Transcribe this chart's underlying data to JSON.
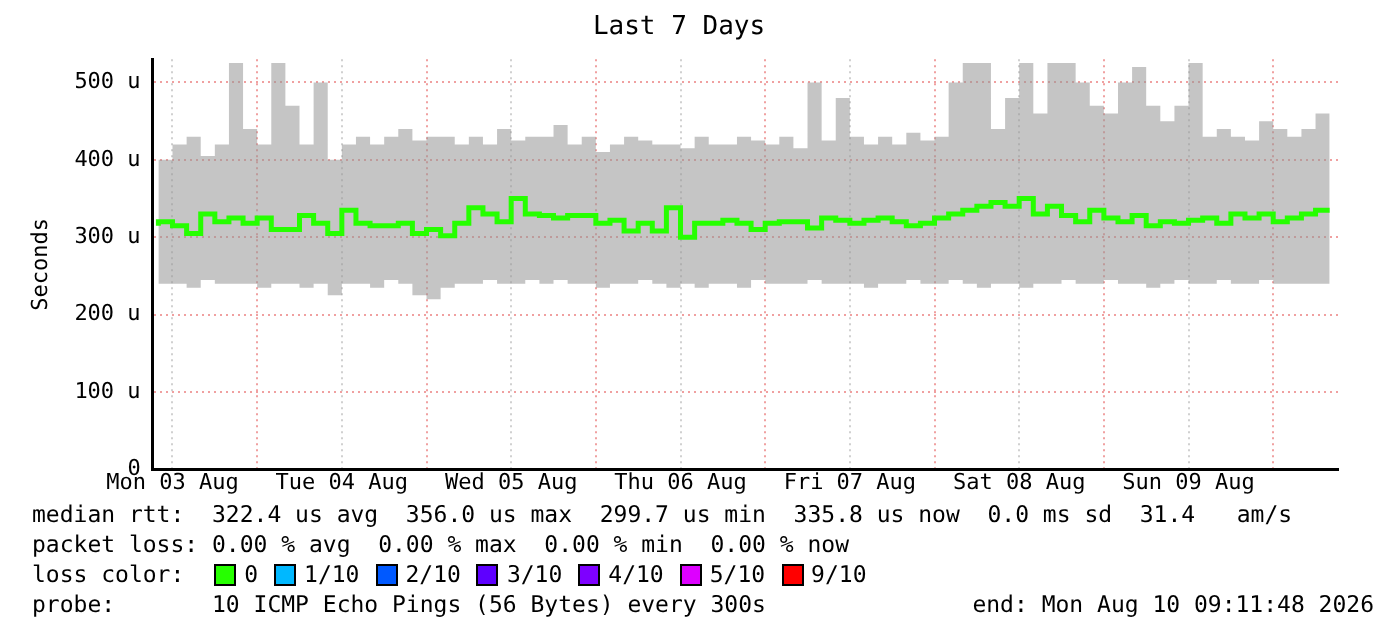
{
  "chart_data": {
    "type": "step",
    "title": "Last 7 Days",
    "ylabel": "Seconds",
    "legend_title": "loss color:",
    "legend": "bottom",
    "xlim": [
      "2026-08-03T09:11",
      "2026-08-10T09:11"
    ],
    "xticks": [
      {
        "value": "2026-08-03T12:00",
        "label": "Mon 03 Aug"
      },
      {
        "value": "2026-08-04T00:00",
        "label": null
      },
      {
        "value": "2026-08-04T12:00",
        "label": "Tue 04 Aug"
      },
      {
        "value": "2026-08-05T00:00",
        "label": null
      },
      {
        "value": "2026-08-05T12:00",
        "label": "Wed 05 Aug"
      },
      {
        "value": "2026-08-06T00:00",
        "label": null
      },
      {
        "value": "2026-08-06T12:00",
        "label": "Thu 06 Aug"
      },
      {
        "value": "2026-08-07T00:00",
        "label": null
      },
      {
        "value": "2026-08-07T12:00",
        "label": "Fri 07 Aug"
      },
      {
        "value": "2026-08-08T00:00",
        "label": null
      },
      {
        "value": "2026-08-08T12:00",
        "label": "Sat 08 Aug"
      },
      {
        "value": "2026-08-09T00:00",
        "label": null
      },
      {
        "value": "2026-08-09T12:00",
        "label": "Sun 09 Aug"
      },
      {
        "value": "2026-08-10T00:00",
        "label": null
      }
    ],
    "ylim": [
      0,
      530
    ],
    "yticks": [
      0,
      {
        "value": 100,
        "label": "100 u"
      },
      {
        "value": 200,
        "label": "200 u"
      },
      {
        "value": 300,
        "label": "300 u"
      },
      {
        "value": 400,
        "label": "400 u"
      },
      {
        "value": 500,
        "label": "500 u"
      }
    ],
    "grid": true,
    "x": [
      "2026-08-03T10:00",
      "2026-08-03T12:00",
      "2026-08-03T14:00",
      "2026-08-03T16:00",
      "2026-08-03T18:00",
      "2026-08-03T20:00",
      "2026-08-03T22:00",
      "2026-08-04T00:00",
      "2026-08-04T02:00",
      "2026-08-04T04:00",
      "2026-08-04T06:00",
      "2026-08-04T08:00",
      "2026-08-04T10:00",
      "2026-08-04T12:00",
      "2026-08-04T14:00",
      "2026-08-04T16:00",
      "2026-08-04T18:00",
      "2026-08-04T20:00",
      "2026-08-04T22:00",
      "2026-08-05T00:00",
      "2026-08-05T02:00",
      "2026-08-05T04:00",
      "2026-08-05T06:00",
      "2026-08-05T08:00",
      "2026-08-05T10:00",
      "2026-08-05T12:00",
      "2026-08-05T14:00",
      "2026-08-05T16:00",
      "2026-08-05T18:00",
      "2026-08-05T20:00",
      "2026-08-05T22:00",
      "2026-08-06T00:00",
      "2026-08-06T02:00",
      "2026-08-06T04:00",
      "2026-08-06T06:00",
      "2026-08-06T08:00",
      "2026-08-06T10:00",
      "2026-08-06T12:00",
      "2026-08-06T14:00",
      "2026-08-06T16:00",
      "2026-08-06T18:00",
      "2026-08-06T20:00",
      "2026-08-06T22:00",
      "2026-08-07T00:00",
      "2026-08-07T02:00",
      "2026-08-07T04:00",
      "2026-08-07T06:00",
      "2026-08-07T08:00",
      "2026-08-07T10:00",
      "2026-08-07T12:00",
      "2026-08-07T14:00",
      "2026-08-07T16:00",
      "2026-08-07T18:00",
      "2026-08-07T20:00",
      "2026-08-07T22:00",
      "2026-08-08T00:00",
      "2026-08-08T02:00",
      "2026-08-08T04:00",
      "2026-08-08T06:00",
      "2026-08-08T08:00",
      "2026-08-08T10:00",
      "2026-08-08T12:00",
      "2026-08-08T14:00",
      "2026-08-08T16:00",
      "2026-08-08T18:00",
      "2026-08-08T20:00",
      "2026-08-08T22:00",
      "2026-08-09T00:00",
      "2026-08-09T02:00",
      "2026-08-09T04:00",
      "2026-08-09T06:00",
      "2026-08-09T08:00",
      "2026-08-09T10:00",
      "2026-08-09T12:00",
      "2026-08-09T14:00",
      "2026-08-09T16:00",
      "2026-08-09T18:00",
      "2026-08-09T20:00",
      "2026-08-09T22:00",
      "2026-08-10T00:00",
      "2026-08-10T02:00",
      "2026-08-10T04:00",
      "2026-08-10T06:00",
      "2026-08-10T08:00"
    ],
    "series": [
      {
        "name": "0",
        "color": "#26ff00",
        "values": [
          315,
          320,
          315,
          305,
          330,
          320,
          325,
          318,
          325,
          310,
          310,
          328,
          318,
          305,
          335,
          318,
          315,
          315,
          318,
          305,
          310,
          302,
          318,
          338,
          330,
          320,
          350,
          330,
          328,
          325,
          328,
          328,
          318,
          322,
          308,
          318,
          308,
          338,
          300,
          318,
          318,
          322,
          318,
          310,
          318,
          320,
          320,
          312,
          325,
          322,
          318,
          322,
          325,
          320,
          315,
          318,
          325,
          330,
          335,
          340,
          345,
          340,
          350,
          330,
          340,
          328,
          320,
          335,
          325,
          320,
          328,
          315,
          320,
          318,
          322,
          325,
          318,
          330,
          325,
          330,
          320,
          325,
          330,
          335
        ],
        "lower": [
          245,
          240,
          240,
          235,
          245,
          240,
          240,
          240,
          235,
          240,
          240,
          235,
          240,
          225,
          240,
          240,
          235,
          245,
          240,
          225,
          220,
          235,
          240,
          240,
          245,
          240,
          240,
          245,
          240,
          245,
          240,
          240,
          235,
          240,
          240,
          245,
          240,
          235,
          240,
          235,
          240,
          240,
          235,
          245,
          240,
          240,
          240,
          245,
          240,
          240,
          240,
          235,
          240,
          240,
          245,
          240,
          240,
          245,
          240,
          235,
          240,
          240,
          235,
          240,
          240,
          245,
          240,
          240,
          245,
          240,
          240,
          235,
          240,
          245,
          240,
          240,
          245,
          240,
          240,
          245,
          240,
          240,
          240,
          240
        ],
        "upper": [
          410,
          400,
          420,
          430,
          405,
          420,
          525,
          440,
          420,
          525,
          470,
          420,
          500,
          400,
          420,
          430,
          420,
          430,
          440,
          425,
          430,
          430,
          420,
          430,
          420,
          440,
          425,
          430,
          430,
          445,
          420,
          430,
          410,
          420,
          430,
          425,
          420,
          420,
          415,
          430,
          420,
          420,
          430,
          425,
          420,
          430,
          415,
          500,
          425,
          480,
          430,
          420,
          430,
          420,
          435,
          425,
          430,
          500,
          525,
          525,
          440,
          480,
          525,
          460,
          525,
          525,
          500,
          470,
          460,
          500,
          520,
          470,
          450,
          470,
          525,
          430,
          440,
          430,
          425,
          450,
          440,
          430,
          440,
          460
        ]
      },
      {
        "name": "1/10",
        "color": "#00b8ff",
        "values": [
          null,
          null,
          null,
          null,
          null,
          null,
          null,
          null,
          null,
          null,
          null,
          null,
          null,
          null,
          null,
          null,
          null,
          null,
          null,
          null,
          null,
          null,
          null,
          null,
          null,
          null,
          null,
          null,
          null,
          null,
          null,
          null,
          null,
          null,
          null,
          null,
          null,
          null,
          null,
          null,
          null,
          null,
          null,
          null,
          null,
          null,
          null,
          null,
          null,
          null,
          null,
          null,
          null,
          null,
          null,
          null,
          null,
          null,
          null,
          null,
          null,
          null,
          null,
          null,
          null,
          null,
          null,
          null,
          null,
          null,
          null,
          null,
          null,
          null,
          null,
          null,
          null,
          null,
          null,
          null,
          null,
          null,
          null,
          null
        ]
      },
      {
        "name": "2/10",
        "color": "#0059ff",
        "values": [
          null,
          null,
          null,
          null,
          null,
          null,
          null,
          null,
          null,
          null,
          null,
          null,
          null,
          null,
          null,
          null,
          null,
          null,
          null,
          null,
          null,
          null,
          null,
          null,
          null,
          null,
          null,
          null,
          null,
          null,
          null,
          null,
          null,
          null,
          null,
          null,
          null,
          null,
          null,
          null,
          null,
          null,
          null,
          null,
          null,
          null,
          null,
          null,
          null,
          null,
          null,
          null,
          null,
          null,
          null,
          null,
          null,
          null,
          null,
          null,
          null,
          null,
          null,
          null,
          null,
          null,
          null,
          null,
          null,
          null,
          null,
          null,
          null,
          null,
          null,
          null,
          null,
          null,
          null,
          null,
          null,
          null,
          null,
          null
        ]
      },
      {
        "name": "3/10",
        "color": "#5e00ff",
        "values": [
          null,
          null,
          null,
          null,
          null,
          null,
          null,
          null,
          null,
          null,
          null,
          null,
          null,
          null,
          null,
          null,
          null,
          null,
          null,
          null,
          null,
          null,
          null,
          null,
          null,
          null,
          null,
          null,
          null,
          null,
          null,
          null,
          null,
          null,
          null,
          null,
          null,
          null,
          null,
          null,
          null,
          null,
          null,
          null,
          null,
          null,
          null,
          null,
          null,
          null,
          null,
          null,
          null,
          null,
          null,
          null,
          null,
          null,
          null,
          null,
          null,
          null,
          null,
          null,
          null,
          null,
          null,
          null,
          null,
          null,
          null,
          null,
          null,
          null,
          null,
          null,
          null,
          null,
          null,
          null,
          null,
          null,
          null,
          null
        ]
      },
      {
        "name": "4/10",
        "color": "#7e00ff",
        "values": [
          null,
          null,
          null,
          null,
          null,
          null,
          null,
          null,
          null,
          null,
          null,
          null,
          null,
          null,
          null,
          null,
          null,
          null,
          null,
          null,
          null,
          null,
          null,
          null,
          null,
          null,
          null,
          null,
          null,
          null,
          null,
          null,
          null,
          null,
          null,
          null,
          null,
          null,
          null,
          null,
          null,
          null,
          null,
          null,
          null,
          null,
          null,
          null,
          null,
          null,
          null,
          null,
          null,
          null,
          null,
          null,
          null,
          null,
          null,
          null,
          null,
          null,
          null,
          null,
          null,
          null,
          null,
          null,
          null,
          null,
          null,
          null,
          null,
          null,
          null,
          null,
          null,
          null,
          null,
          null,
          null,
          null,
          null,
          null
        ]
      },
      {
        "name": "5/10",
        "color": "#dd00ff",
        "values": [
          null,
          null,
          null,
          null,
          null,
          null,
          null,
          null,
          null,
          null,
          null,
          null,
          null,
          null,
          null,
          null,
          null,
          null,
          null,
          null,
          null,
          null,
          null,
          null,
          null,
          null,
          null,
          null,
          null,
          null,
          null,
          null,
          null,
          null,
          null,
          null,
          null,
          null,
          null,
          null,
          null,
          null,
          null,
          null,
          null,
          null,
          null,
          null,
          null,
          null,
          null,
          null,
          null,
          null,
          null,
          null,
          null,
          null,
          null,
          null,
          null,
          null,
          null,
          null,
          null,
          null,
          null,
          null,
          null,
          null,
          null,
          null,
          null,
          null,
          null,
          null,
          null,
          null,
          null,
          null,
          null,
          null,
          null,
          null
        ]
      },
      {
        "name": "9/10",
        "color": "#ff0000",
        "values": [
          null,
          null,
          null,
          null,
          null,
          null,
          null,
          null,
          null,
          null,
          null,
          null,
          null,
          null,
          null,
          null,
          null,
          null,
          null,
          null,
          null,
          null,
          null,
          null,
          null,
          null,
          null,
          null,
          null,
          null,
          null,
          null,
          null,
          null,
          null,
          null,
          null,
          null,
          null,
          null,
          null,
          null,
          null,
          null,
          null,
          null,
          null,
          null,
          null,
          null,
          null,
          null,
          null,
          null,
          null,
          null,
          null,
          null,
          null,
          null,
          null,
          null,
          null,
          null,
          null,
          null,
          null,
          null,
          null,
          null,
          null,
          null,
          null,
          null,
          null,
          null,
          null,
          null,
          null,
          null,
          null,
          null,
          null,
          null
        ]
      }
    ],
    "annotations": [
      "median rtt:  322.4 us avg  356.0 us max  299.7 us min  335.8 us now  0.0 ms sd  31.4   am/s",
      "packet loss: 0.00 % avg  0.00 % max  0.00 % min  0.00 % now",
      "probe:       10 ICMP Echo Pings (56 Bytes) every 300s",
      "end: Mon Aug 10 09:11:48 2026"
    ]
  }
}
